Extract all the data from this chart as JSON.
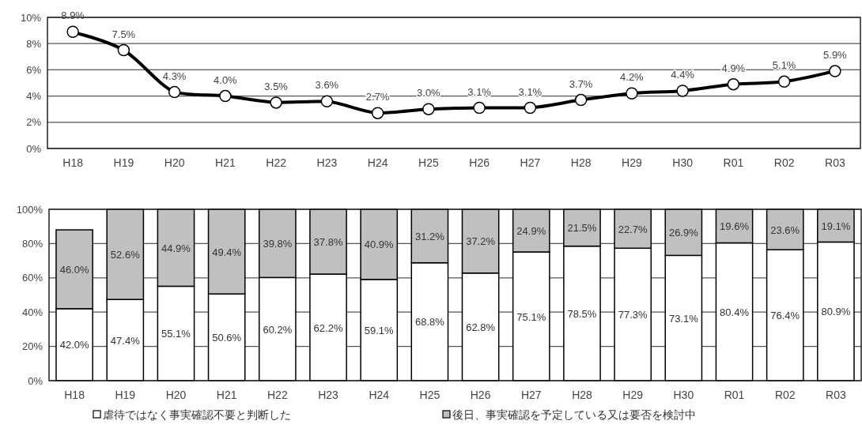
{
  "chart_data": [
    {
      "type": "line",
      "categories": [
        "H18",
        "H19",
        "H20",
        "H21",
        "H22",
        "H23",
        "H24",
        "H25",
        "H26",
        "H27",
        "H28",
        "H29",
        "H30",
        "R01",
        "R02",
        "R03"
      ],
      "series": [
        {
          "color": "#000000",
          "values": [
            8.9,
            7.5,
            4.3,
            4.0,
            3.5,
            3.6,
            2.7,
            3.0,
            3.1,
            3.1,
            3.7,
            4.2,
            4.4,
            4.9,
            5.1,
            5.9
          ],
          "value_labels": [
            "8.9%",
            "7.5%",
            "4.3%",
            "4.0%",
            "3.5%",
            "3.6%",
            "2.7%",
            "3.0%",
            "3.1%",
            "3.1%",
            "3.7%",
            "4.2%",
            "4.4%",
            "4.9%",
            "5.1%",
            "5.9%"
          ]
        }
      ],
      "ylim": [
        0,
        10
      ],
      "yticks": [
        {
          "value": 0,
          "label": "0%"
        },
        {
          "value": 2,
          "label": "2%"
        },
        {
          "value": 4,
          "label": "4%"
        },
        {
          "value": 6,
          "label": "6%"
        },
        {
          "value": 8,
          "label": "8%"
        },
        {
          "value": 10,
          "label": "10%"
        }
      ],
      "grid": "y",
      "marker": "circle",
      "line_style": "solid"
    },
    {
      "type": "bar",
      "stacked": true,
      "categories": [
        "H18",
        "H19",
        "H20",
        "H21",
        "H22",
        "H23",
        "H24",
        "H25",
        "H26",
        "H27",
        "H28",
        "H29",
        "H30",
        "R01",
        "R02",
        "R03"
      ],
      "series": [
        {
          "name": "虐待ではなく事実確認不要と判断した",
          "color": "#ffffff",
          "values": [
            42.0,
            47.4,
            55.1,
            50.6,
            60.2,
            62.2,
            59.1,
            68.8,
            62.8,
            75.1,
            78.5,
            77.3,
            73.1,
            80.4,
            76.4,
            80.9
          ],
          "value_labels": [
            "42.0%",
            "47.4%",
            "55.1%",
            "50.6%",
            "60.2%",
            "62.2%",
            "59.1%",
            "68.8%",
            "62.8%",
            "75.1%",
            "78.5%",
            "77.3%",
            "73.1%",
            "80.4%",
            "76.4%",
            "80.9%"
          ]
        },
        {
          "name": "後日、事実確認を予定している又は要否を検討中",
          "color": "#c0c0c0",
          "values": [
            46.0,
            52.6,
            44.9,
            49.4,
            39.8,
            37.8,
            40.9,
            31.2,
            37.2,
            24.9,
            21.5,
            22.7,
            26.9,
            19.6,
            23.6,
            19.1
          ],
          "value_labels": [
            "46.0%",
            "52.6%",
            "44.9%",
            "49.4%",
            "39.8%",
            "37.8%",
            "40.9%",
            "31.2%",
            "37.2%",
            "24.9%",
            "21.5%",
            "22.7%",
            "26.9%",
            "19.6%",
            "23.6%",
            "19.1%"
          ]
        }
      ],
      "ylim": [
        0,
        100
      ],
      "yticks": [
        {
          "value": 0,
          "label": "0%"
        },
        {
          "value": 20,
          "label": "20%"
        },
        {
          "value": 40,
          "label": "40%"
        },
        {
          "value": 60,
          "label": "60%"
        },
        {
          "value": 80,
          "label": "80%"
        },
        {
          "value": 100,
          "label": "100%"
        }
      ],
      "grid": "y",
      "legend": "bottom"
    }
  ]
}
